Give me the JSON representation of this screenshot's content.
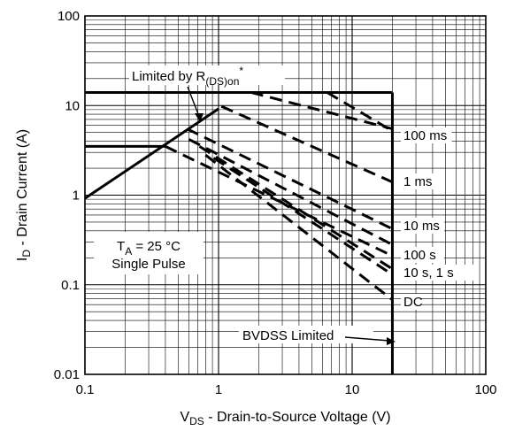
{
  "chart_data": {
    "type": "line",
    "scale": {
      "x": "log",
      "y": "log"
    },
    "xlim": [
      0.1,
      100
    ],
    "ylim": [
      0.01,
      100
    ],
    "x_ticks": [
      "0.1",
      "1",
      "10",
      "100"
    ],
    "y_ticks": [
      "0.01",
      "0.1",
      "1",
      "10",
      "100"
    ],
    "xlabel": {
      "main": "V",
      "sub": "DS",
      "rest": " - Drain-to-Source Voltage (V)"
    },
    "ylabel": {
      "main": "I",
      "sub": "D",
      "rest": " - Drain Current (A)"
    },
    "grid": true,
    "annotations": {
      "rdson": {
        "pre": "Limited by R",
        "sub": "(DS)on",
        "sup": "*"
      },
      "ta": {
        "pre": "T",
        "sub": "A",
        "rest": " = 25 °C"
      },
      "pulse": "Single Pulse",
      "bvdss": "BVDSS Limited"
    },
    "boundaries": {
      "rdson": [
        [
          0.1,
          0.92
        ],
        [
          1.0,
          9.2
        ]
      ],
      "current_limits": [
        {
          "y": 14,
          "x": [
            0.1,
            20
          ]
        },
        {
          "y": 3.5,
          "x": [
            0.1,
            0.4
          ]
        }
      ],
      "bvdss": {
        "x": 20,
        "y": [
          0.01,
          14
        ]
      }
    },
    "series": [
      {
        "name": "100 ms",
        "points": [
          [
            1.75,
            14
          ],
          [
            20,
            5.5
          ]
        ]
      },
      {
        "name": "1 ms",
        "points": [
          [
            1.05,
            9.8
          ],
          [
            20,
            1.4
          ]
        ]
      },
      {
        "name": "10 ms",
        "points": [
          [
            0.58,
            5.5
          ],
          [
            20,
            0.42
          ]
        ]
      },
      {
        "name": "100 s",
        "points": [
          [
            0.4,
            3.5
          ],
          [
            20,
            0.21
          ]
        ]
      },
      {
        "name": "10 s, 1 s",
        "points": [
          [
            0.72,
            3.5
          ],
          [
            20,
            0.15
          ]
        ]
      },
      {
        "name": "DC",
        "points": [
          [
            0.8,
            2.8
          ],
          [
            20,
            0.068
          ]
        ]
      }
    ],
    "series_extra_lines": [
      {
        "points": [
          [
            0.92,
            2.6
          ],
          [
            20,
            0.13
          ]
        ]
      },
      {
        "points": [
          [
            0.6,
            4.2
          ],
          [
            20,
            0.28
          ]
        ]
      },
      {
        "points": [
          [
            6.5,
            14
          ],
          [
            20,
            5.2
          ]
        ]
      }
    ]
  }
}
